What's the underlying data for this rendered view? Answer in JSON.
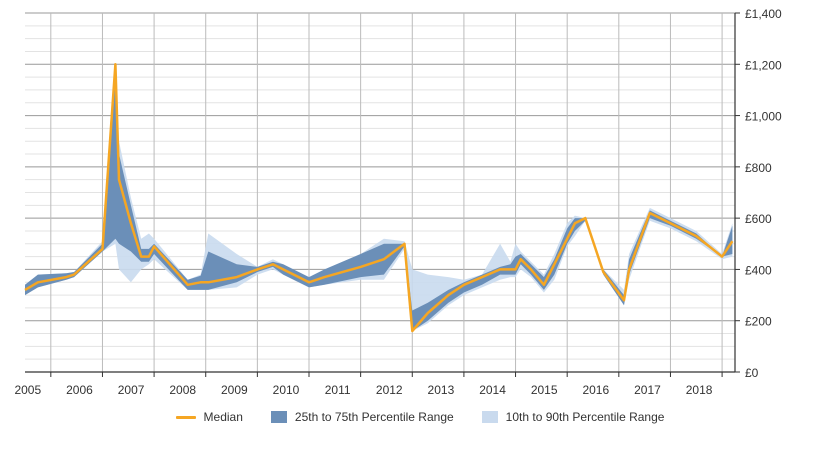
{
  "chart_data": {
    "type": "area",
    "x_ticks": [
      "2005",
      "2006",
      "2007",
      "2008",
      "2009",
      "2010",
      "2011",
      "2012",
      "2013",
      "2014",
      "2015",
      "2016",
      "2017",
      "2018"
    ],
    "y_ticks": [
      "£0",
      "£200",
      "£400",
      "£600",
      "£800",
      "£1,000",
      "£1,200",
      "£1,400"
    ],
    "ylim": [
      0,
      1400
    ],
    "xlim": [
      2004.5,
      2018.25
    ],
    "grid": true,
    "y_axis_side": "right",
    "legend_position": "bottom",
    "colors": {
      "median": "#f5a623",
      "iqr": "#6b8fb8",
      "p10_90": "#c9daee",
      "grid": "#cccccc",
      "axis": "#333333"
    },
    "legend": [
      {
        "label": "Median",
        "kind": "line",
        "color": "#f5a623"
      },
      {
        "label": "25th to 75th Percentile Range",
        "kind": "box",
        "color": "#6b8fb8"
      },
      {
        "label": "10th to 90th Percentile Range",
        "kind": "box",
        "color": "#c9daee"
      }
    ],
    "x": [
      2004.5,
      2004.75,
      2005.3,
      2005.45,
      2006.0,
      2006.25,
      2006.32,
      2006.55,
      2006.75,
      2006.9,
      2007.0,
      2007.65,
      2007.9,
      2008.05,
      2008.6,
      2009.0,
      2009.3,
      2009.5,
      2010.0,
      2010.3,
      2011.0,
      2011.45,
      2011.85,
      2012.0,
      2012.3,
      2012.7,
      2013.0,
      2013.35,
      2013.7,
      2013.9,
      2014.0,
      2014.1,
      2014.3,
      2014.55,
      2014.75,
      2015.0,
      2015.15,
      2015.35,
      2015.7,
      2016.1,
      2016.2,
      2016.6,
      2017.0,
      2017.5,
      2018.0,
      2018.2
    ],
    "median": [
      320,
      350,
      370,
      380,
      480,
      1200,
      750,
      580,
      450,
      450,
      490,
      340,
      350,
      350,
      370,
      400,
      420,
      400,
      350,
      370,
      410,
      440,
      500,
      160,
      230,
      300,
      340,
      370,
      400,
      400,
      400,
      440,
      400,
      340,
      420,
      520,
      580,
      600,
      390,
      280,
      400,
      620,
      580,
      530,
      450,
      510
    ],
    "p25": [
      300,
      330,
      360,
      370,
      470,
      520,
      500,
      470,
      430,
      430,
      460,
      320,
      320,
      320,
      350,
      390,
      410,
      380,
      330,
      340,
      370,
      380,
      490,
      160,
      200,
      270,
      310,
      340,
      380,
      380,
      380,
      420,
      380,
      320,
      380,
      500,
      550,
      590,
      380,
      260,
      380,
      600,
      570,
      520,
      450,
      460
    ],
    "p75": [
      340,
      380,
      385,
      390,
      500,
      1200,
      850,
      650,
      480,
      480,
      500,
      360,
      375,
      470,
      420,
      410,
      430,
      420,
      370,
      400,
      460,
      500,
      500,
      240,
      270,
      320,
      350,
      380,
      410,
      420,
      450,
      460,
      420,
      370,
      440,
      560,
      600,
      600,
      400,
      300,
      440,
      630,
      590,
      540,
      450,
      570
    ],
    "p10": [
      300,
      330,
      360,
      370,
      470,
      500,
      400,
      350,
      400,
      420,
      440,
      320,
      320,
      320,
      330,
      380,
      400,
      380,
      330,
      340,
      360,
      360,
      480,
      160,
      190,
      260,
      300,
      330,
      360,
      370,
      370,
      400,
      370,
      310,
      360,
      490,
      530,
      590,
      380,
      260,
      360,
      590,
      560,
      510,
      440,
      450
    ],
    "p90": [
      340,
      380,
      385,
      390,
      510,
      1200,
      900,
      680,
      520,
      540,
      520,
      360,
      380,
      540,
      460,
      410,
      440,
      420,
      370,
      400,
      460,
      520,
      510,
      400,
      380,
      370,
      360,
      380,
      500,
      430,
      500,
      470,
      430,
      380,
      460,
      580,
      610,
      600,
      400,
      320,
      460,
      640,
      600,
      550,
      460,
      580
    ]
  }
}
